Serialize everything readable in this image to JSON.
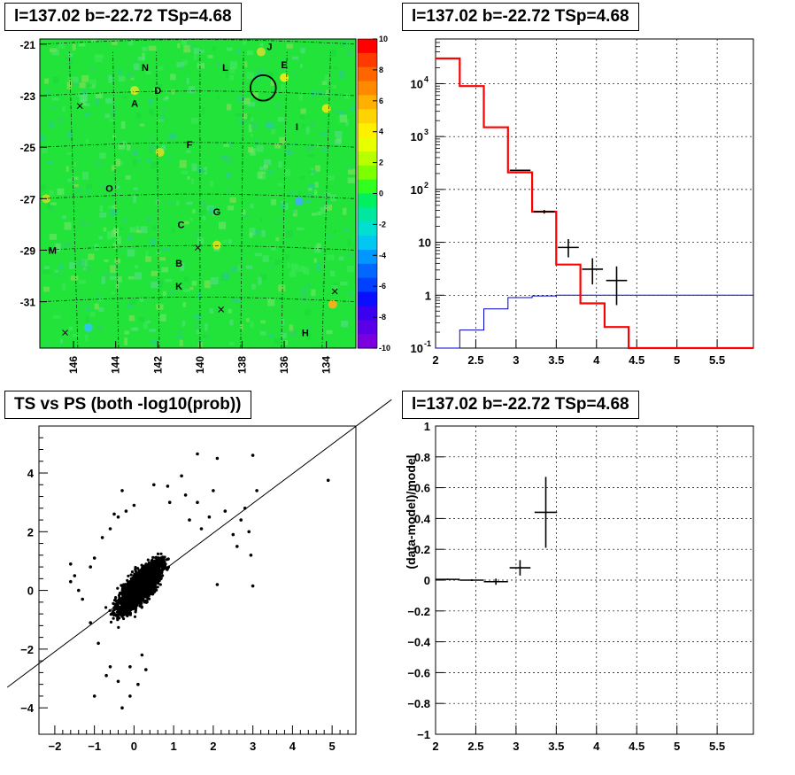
{
  "panels": {
    "skymap_title": "l=137.02 b=-22.72 TSp=4.68",
    "spectrum_title": "l=137.02 b=-22.72 TSp=4.68",
    "scatter_title": "TS vs PS (both -log10(prob))",
    "residual_title": "l=137.02 b=-22.72 TSp=4.68"
  },
  "colors": {
    "map_background": "#22e33a",
    "data_marker": "#000000",
    "model_total": "#ff0000",
    "model_background": "#0000cc",
    "grid": "#000000"
  },
  "chart_data": [
    {
      "type": "heatmap",
      "name": "skymap",
      "x_ticks": [
        "146",
        "144",
        "142",
        "140",
        "138",
        "136",
        "134"
      ],
      "y_ticks": [
        "-21",
        "-23",
        "-25",
        "-27",
        "-29",
        "-31"
      ],
      "xlim": [
        147.6,
        132.6
      ],
      "ylim": [
        -32.8,
        -20.8
      ],
      "colorbar": {
        "range": [
          -10,
          10
        ],
        "ticks": [
          "10",
          "8",
          "6",
          "4",
          "2",
          "0",
          "-2",
          "-4",
          "-6",
          "-8",
          "-10"
        ]
      },
      "source_labels": [
        {
          "text": "J",
          "l": 136.7,
          "b": -21.1
        },
        {
          "text": "N",
          "l": 142.6,
          "b": -21.9
        },
        {
          "text": "L",
          "l": 138.8,
          "b": -21.9
        },
        {
          "text": "E",
          "l": 136.0,
          "b": -21.8
        },
        {
          "text": "D",
          "l": 142.0,
          "b": -22.8
        },
        {
          "text": "A",
          "l": 143.1,
          "b": -23.3
        },
        {
          "text": "I",
          "l": 135.4,
          "b": -24.2
        },
        {
          "text": "F",
          "l": 140.5,
          "b": -24.9
        },
        {
          "text": "O",
          "l": 144.3,
          "b": -26.6
        },
        {
          "text": "G",
          "l": 139.2,
          "b": -27.5
        },
        {
          "text": "C",
          "l": 140.9,
          "b": -28.0
        },
        {
          "text": "M",
          "l": 147.0,
          "b": -29.0
        },
        {
          "text": "B",
          "l": 141.0,
          "b": -29.5
        },
        {
          "text": "K",
          "l": 141.0,
          "b": -30.4
        },
        {
          "text": "H",
          "l": 135.0,
          "b": -32.2
        }
      ],
      "cross_markers": [
        {
          "l": 145.7,
          "b": -23.4
        },
        {
          "l": 146.4,
          "b": -32.2
        },
        {
          "l": 140.1,
          "b": -28.9
        },
        {
          "l": 139.0,
          "b": -31.3
        },
        {
          "l": 133.6,
          "b": -30.6
        }
      ],
      "circle": {
        "l": 137.0,
        "b": -22.7,
        "radius_deg": 0.55
      }
    },
    {
      "type": "line",
      "name": "spectrum",
      "xlim": [
        2,
        5.95
      ],
      "ylog": true,
      "ylim": [
        0.1,
        70000
      ],
      "x_ticks": [
        "2",
        "2.5",
        "3",
        "3.5",
        "4",
        "4.5",
        "5",
        "5.5"
      ],
      "y_ticks": [
        {
          "label": "10",
          "sup": "4",
          "value": 10000
        },
        {
          "label": "10",
          "sup": "3",
          "value": 1000
        },
        {
          "label": "10",
          "sup": "2",
          "value": 100
        },
        {
          "label": "10",
          "sup": "",
          "value": 10
        },
        {
          "label": "1",
          "sup": "",
          "value": 1
        },
        {
          "label": "10",
          "sup": "-1",
          "value": 0.1
        }
      ],
      "series": [
        {
          "type": "step",
          "edges": [
            2.0,
            2.3,
            2.6,
            2.9,
            3.2,
            3.5,
            3.8,
            4.1,
            4.4,
            4.7,
            5.0,
            5.3,
            5.6,
            5.95
          ],
          "values": [
            30000,
            9000,
            1500,
            210,
            38,
            3.8,
            0.7,
            0.25,
            0.1,
            0.1,
            0.1,
            0.1,
            0.1
          ]
        },
        {
          "type": "step",
          "edges": [
            2.0,
            2.3,
            2.6,
            2.9,
            3.2,
            3.5,
            3.8,
            4.1,
            4.4,
            4.7,
            5.0,
            5.3,
            5.6,
            5.95
          ],
          "values": [
            0.1,
            0.22,
            0.55,
            0.9,
            0.97,
            1.0,
            1.0,
            1.0,
            1.0,
            1.0,
            1.0,
            1.0,
            1.0
          ]
        }
      ],
      "points": [
        {
          "x": 3.05,
          "xerr": 0.13,
          "y": 230,
          "ylo": 225,
          "yhi": 235
        },
        {
          "x": 3.35,
          "xerr": 0.13,
          "y": 38,
          "ylo": 35,
          "yhi": 41
        },
        {
          "x": 3.65,
          "xerr": 0.13,
          "y": 8.0,
          "ylo": 5.2,
          "yhi": 11.5
        },
        {
          "x": 3.95,
          "xerr": 0.13,
          "y": 3.1,
          "ylo": 1.6,
          "yhi": 5.0
        },
        {
          "x": 4.25,
          "xerr": 0.13,
          "y": 1.9,
          "ylo": 0.65,
          "yhi": 3.5
        }
      ]
    },
    {
      "type": "scatter",
      "name": "ts_vs_ps",
      "xlim": [
        -2.4,
        5.6
      ],
      "ylim": [
        -4.9,
        5.6
      ],
      "x_ticks": [
        "-2",
        "-1",
        "0",
        "1",
        "2",
        "3",
        "4",
        "5"
      ],
      "y_ticks": [
        "-4",
        "-2",
        "0",
        "2",
        "4"
      ],
      "line": {
        "x1": -3.2,
        "y1": -3.3,
        "x2": 6.5,
        "y2": 6.5
      },
      "outliers": [
        [
          4.9,
          3.75
        ],
        [
          2.1,
          4.5
        ],
        [
          1.6,
          4.65
        ],
        [
          3.0,
          4.6
        ],
        [
          1.2,
          3.9
        ],
        [
          0.5,
          3.6
        ],
        [
          0.85,
          3.55
        ],
        [
          2.0,
          3.4
        ],
        [
          3.1,
          3.4
        ],
        [
          1.3,
          3.25
        ],
        [
          2.8,
          2.8
        ],
        [
          -0.4,
          2.5
        ],
        [
          -0.2,
          2.7
        ],
        [
          2.9,
          2.0
        ],
        [
          2.95,
          1.2
        ],
        [
          2.6,
          1.5
        ],
        [
          2.1,
          0.2
        ],
        [
          3.0,
          0.15
        ],
        [
          2.3,
          2.7
        ],
        [
          2.5,
          1.9
        ],
        [
          2.7,
          2.4
        ],
        [
          -1.4,
          0.0
        ],
        [
          -1.5,
          0.5
        ],
        [
          -1.6,
          0.9
        ],
        [
          -1.6,
          0.3
        ],
        [
          -1.3,
          -0.3
        ],
        [
          -0.8,
          1.8
        ],
        [
          -0.6,
          2.1
        ],
        [
          -1.0,
          -3.6
        ],
        [
          -0.3,
          -4.0
        ],
        [
          0.1,
          -3.2
        ],
        [
          -0.6,
          -2.6
        ],
        [
          -0.4,
          -3.1
        ],
        [
          -0.1,
          -2.6
        ],
        [
          -0.9,
          -1.8
        ],
        [
          -1.1,
          -1.1
        ],
        [
          -0.7,
          -2.9
        ],
        [
          1.6,
          3.0
        ],
        [
          1.4,
          2.4
        ],
        [
          1.9,
          2.5
        ],
        [
          -0.1,
          -3.6
        ],
        [
          0.0,
          2.9
        ],
        [
          0.9,
          3.0
        ],
        [
          -0.3,
          3.4
        ],
        [
          1.7,
          2.1
        ],
        [
          -0.5,
          2.6
        ],
        [
          -1.0,
          1.1
        ],
        [
          -1.1,
          0.8
        ],
        [
          0.3,
          -2.7
        ],
        [
          0.2,
          -2.2
        ]
      ]
    },
    {
      "type": "line",
      "name": "residual",
      "ylabel": "(data-model)/model",
      "xlim": [
        2,
        5.95
      ],
      "ylim": [
        -1,
        1
      ],
      "x_ticks": [
        "2",
        "2.5",
        "3",
        "3.5",
        "4",
        "4.5",
        "5",
        "5.5"
      ],
      "y_ticks": [
        "1",
        "0.8",
        "0.6",
        "0.4",
        "0.2",
        "0",
        "-0.2",
        "-0.4",
        "-0.6",
        "-0.8",
        "-1"
      ],
      "points": [
        {
          "x": 2.15,
          "xerr": 0.15,
          "y": 0.005,
          "yerr": 0.005
        },
        {
          "x": 2.45,
          "xerr": 0.15,
          "y": 0.0,
          "yerr": 0.006
        },
        {
          "x": 2.75,
          "xerr": 0.15,
          "y": -0.01,
          "yerr": 0.02
        },
        {
          "x": 3.05,
          "xerr": 0.13,
          "y": 0.08,
          "yerr": 0.05
        },
        {
          "x": 3.37,
          "xerr": 0.14,
          "y": 0.44,
          "yerr": 0.23
        }
      ]
    }
  ]
}
